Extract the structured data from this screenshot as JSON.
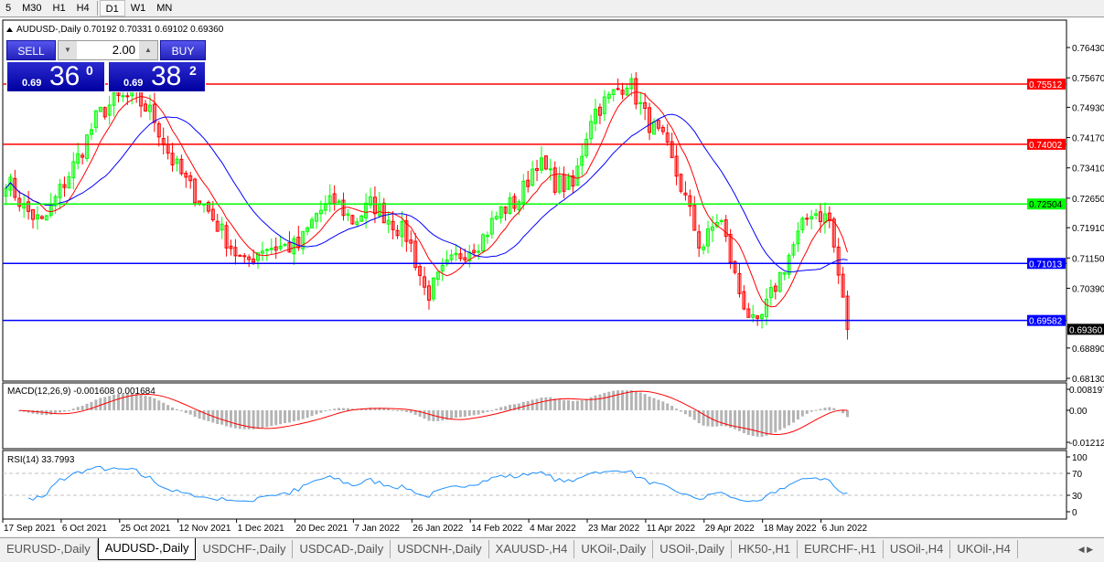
{
  "timeframes": [
    {
      "label": "5"
    },
    {
      "label": "M30"
    },
    {
      "label": "H1"
    },
    {
      "label": "H4"
    },
    {
      "label": "D1",
      "active": true
    },
    {
      "label": "W1"
    },
    {
      "label": "MN"
    }
  ],
  "chart": {
    "header": "AUDUSD-,Daily  0.70192 0.70331 0.69102 0.69360",
    "price_axis": [
      "0.76430",
      "0.75670",
      "0.74930",
      "0.74170",
      "0.73410",
      "0.72650",
      "0.71910",
      "0.71150",
      "0.70390",
      "0.68890",
      "0.68130"
    ],
    "hlines": [
      {
        "price": "0.75512",
        "color": "#ff0000"
      },
      {
        "price": "0.74002",
        "color": "#ff0000"
      },
      {
        "price": "0.72504",
        "color": "#00ff00"
      },
      {
        "price": "0.71013",
        "color": "#0000ff"
      },
      {
        "price": "0.69582",
        "color": "#0000ff"
      }
    ],
    "current_price": "0.69360",
    "closes": [
      0.7315,
      0.7239,
      0.72,
      0.7288,
      0.7372,
      0.7471,
      0.7512,
      0.7519,
      0.7476,
      0.7366,
      0.7295,
      0.7237,
      0.7166,
      0.7097,
      0.7143,
      0.7143,
      0.7143,
      0.7228,
      0.7258,
      0.7205,
      0.7253,
      0.721,
      0.7166,
      0.7019,
      0.7086,
      0.7132,
      0.7162,
      0.7233,
      0.7258,
      0.7361,
      0.7304,
      0.7292,
      0.7476,
      0.7517,
      0.7563,
      0.7464,
      0.7402,
      0.7283,
      0.7136,
      0.7223,
      0.704,
      0.693,
      0.704,
      0.7141,
      0.7235,
      0.7212,
      0.6936
    ],
    "colors": {
      "up": "#00ff00",
      "down": "#ff0000",
      "ma_fast": "#ff0000",
      "ma_slow": "#0000ff"
    },
    "dates": [
      "17 Sep 2021",
      "6 Oct 2021",
      "25 Oct 2021",
      "12 Nov 2021",
      "1 Dec 2021",
      "20 Dec 2021",
      "7 Jan 2022",
      "26 Jan 2022",
      "14 Feb 2022",
      "4 Mar 2022",
      "23 Mar 2022",
      "11 Apr 2022",
      "29 Apr 2022",
      "18 May 2022",
      "6 Jun 2022"
    ]
  },
  "one_click": {
    "sell": "SELL",
    "buy": "BUY",
    "lot": "2.00",
    "sell_prefix": "0.69",
    "sell_big": "36",
    "sell_sup": "0",
    "buy_prefix": "0.69",
    "buy_big": "38",
    "buy_sup": "2"
  },
  "macd": {
    "label": "MACD(12,26,9) -0.001608 0.001684",
    "axis": [
      "0.008197",
      "0.00",
      "-0.01212"
    ]
  },
  "rsi": {
    "label": "RSI(14) 33.7993",
    "axis": [
      "100",
      "70",
      "30",
      "0"
    ]
  },
  "tabs": [
    {
      "label": "EURUSD-,Daily"
    },
    {
      "label": "AUDUSD-,Daily",
      "active": true
    },
    {
      "label": "USDCHF-,Daily"
    },
    {
      "label": "USDCAD-,Daily"
    },
    {
      "label": "USDCNH-,Daily"
    },
    {
      "label": "XAUUSD-,H4"
    },
    {
      "label": "UKOil-,Daily"
    },
    {
      "label": "USOil-,Daily"
    },
    {
      "label": "HK50-,H1"
    },
    {
      "label": "EURCHF-,H1"
    },
    {
      "label": "USOil-,H4"
    },
    {
      "label": "UKOil-,H4"
    }
  ],
  "tab_nav": "◀ ▶"
}
